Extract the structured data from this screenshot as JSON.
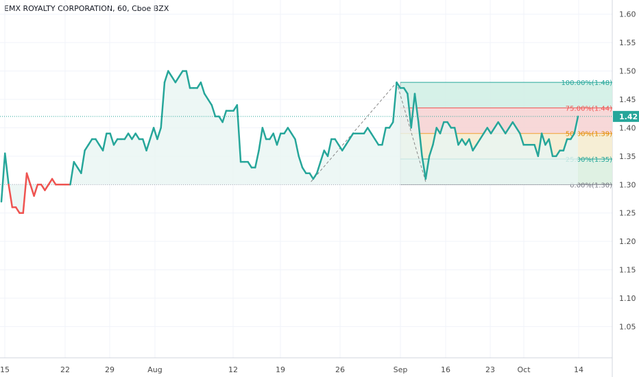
{
  "header": {
    "title": "EMX ROYALTY CORPORATION, 60, Cboe BZX"
  },
  "colors": {
    "line_up": "#26a69a",
    "line_down": "#ef5350",
    "area_fill": "#e8f5f3",
    "fib_top": "#d1f0e6",
    "fib_75": "#f6d4d4",
    "fib_50": "#f5ecd0",
    "fib_25": "#dcefe0",
    "grid": "#f0f3fa",
    "axis_text": "#4a4a4a",
    "price_badge": "#26a69a"
  },
  "current_price": "1.42",
  "chart_data": {
    "type": "line",
    "title": "EMX ROYALTY CORPORATION, 60, Cboe BZX",
    "ylim": [
      0.995,
      1.625
    ],
    "yticks": [
      "1.60",
      "1.55",
      "1.50",
      "1.45",
      "1.40",
      "1.35",
      "1.30",
      "1.25",
      "1.20",
      "1.15",
      "1.10",
      "1.05"
    ],
    "xticks": [
      "15",
      "22",
      "29",
      "Aug",
      "12",
      "19",
      "26",
      "Sep",
      "16",
      "23",
      "Oct",
      "14"
    ],
    "grid": true,
    "baseline": 1.3,
    "current_price": 1.42,
    "series": [
      {
        "values": [
          1.27,
          1.355,
          1.3,
          1.26,
          1.26,
          1.25,
          1.25,
          1.32,
          1.3,
          1.28,
          1.3,
          1.3,
          1.29,
          1.3,
          1.31,
          1.3,
          1.3,
          1.3,
          1.3,
          1.3,
          1.34,
          1.33,
          1.32,
          1.36,
          1.37,
          1.38,
          1.38,
          1.37,
          1.36,
          1.39,
          1.39,
          1.37,
          1.38,
          1.38,
          1.38,
          1.39,
          1.38,
          1.39,
          1.38,
          1.38,
          1.36,
          1.38,
          1.4,
          1.38,
          1.4,
          1.48,
          1.5,
          1.49,
          1.48,
          1.49,
          1.5,
          1.5,
          1.47,
          1.47,
          1.47,
          1.48,
          1.46,
          1.45,
          1.44,
          1.42,
          1.42,
          1.41,
          1.43,
          1.43,
          1.43,
          1.44,
          1.34,
          1.34,
          1.34,
          1.33,
          1.33,
          1.36,
          1.4,
          1.38,
          1.38,
          1.39,
          1.37,
          1.39,
          1.39,
          1.4,
          1.39,
          1.38,
          1.35,
          1.33,
          1.32,
          1.32,
          1.31,
          1.32,
          1.34,
          1.36,
          1.35,
          1.38,
          1.38,
          1.37,
          1.36,
          1.37,
          1.38,
          1.39,
          1.39,
          1.39,
          1.39,
          1.4,
          1.39,
          1.38,
          1.37,
          1.37,
          1.4,
          1.4,
          1.41,
          1.48,
          1.47,
          1.47,
          1.46,
          1.4,
          1.46,
          1.41,
          1.35,
          1.31,
          1.35,
          1.37,
          1.4,
          1.39,
          1.41,
          1.41,
          1.4,
          1.4,
          1.37,
          1.38,
          1.37,
          1.38,
          1.36,
          1.37,
          1.38,
          1.39,
          1.4,
          1.39,
          1.4,
          1.41,
          1.4,
          1.39,
          1.4,
          1.41,
          1.4,
          1.39,
          1.37,
          1.37,
          1.37,
          1.37,
          1.35,
          1.39,
          1.37,
          1.38,
          1.35,
          1.35,
          1.36,
          1.36,
          1.38,
          1.38,
          1.39,
          1.42
        ]
      }
    ],
    "fibonacci": {
      "levels": [
        {
          "label": "100.00%(1.48)",
          "value": 1.48
        },
        {
          "label": "75.00%(1.44)",
          "value": 1.435
        },
        {
          "label": "50.00%(1.39)",
          "value": 1.39
        },
        {
          "label": "25.00%(1.35)",
          "value": 1.345
        },
        {
          "label": "0.00%(1.30)",
          "value": 1.3
        }
      ]
    }
  }
}
